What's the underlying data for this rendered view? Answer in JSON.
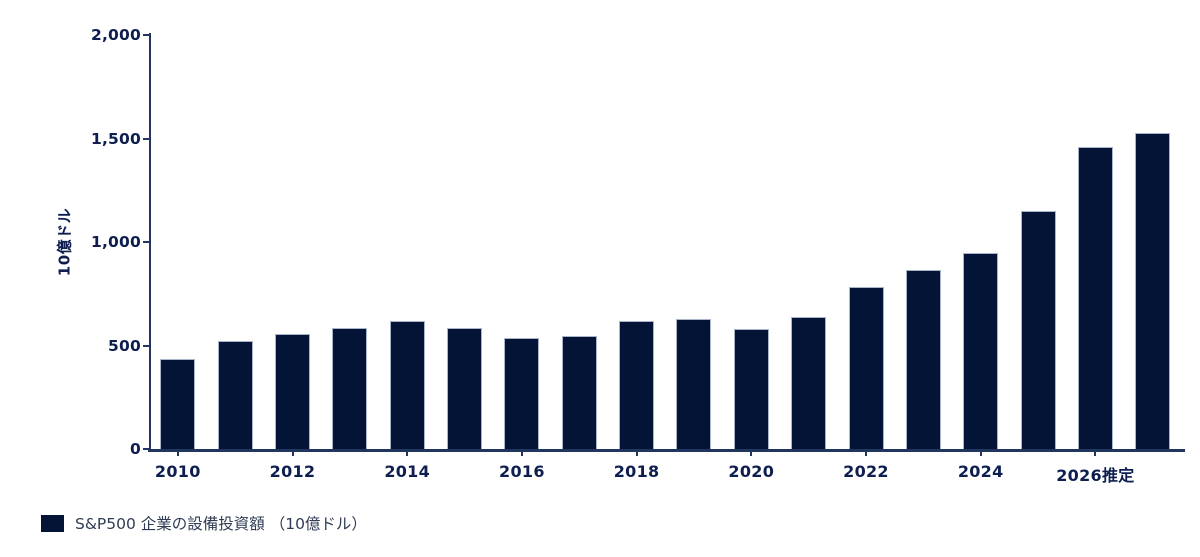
{
  "colors": {
    "bar_fill": "#041437",
    "bar_border": "#aab4c9",
    "axis_line": "#22355f",
    "axis_label": "#0d1e4f",
    "legend_text": "#303c54",
    "background": "#ffffff"
  },
  "chart_data": {
    "type": "bar",
    "title": "",
    "xlabel": "",
    "ylabel": "10億ドル",
    "unit": "10億ドル",
    "ylim": [
      0,
      2000
    ],
    "grid": false,
    "legend_position": "bottom-left",
    "series_label": "S&P500 企業の設備投資額 （10億ドル）",
    "x": [
      2010,
      2011,
      2012,
      2013,
      2014,
      2015,
      2016,
      2017,
      2018,
      2019,
      2020,
      2021,
      2022,
      2023,
      2024,
      2025,
      2026,
      2027
    ],
    "values": [
      435,
      520,
      555,
      585,
      620,
      585,
      535,
      545,
      620,
      630,
      580,
      640,
      785,
      865,
      945,
      1150,
      1460,
      1525
    ],
    "y_ticks": [
      0,
      500,
      1000,
      1500,
      2000
    ],
    "y_tick_labels": [
      "0",
      "500",
      "1,000",
      "1,500",
      "2,000"
    ],
    "x_tick_positions": [
      2010,
      2012,
      2014,
      2016,
      2018,
      2020,
      2022,
      2024,
      2026
    ],
    "x_tick_labels": [
      "2010",
      "2012",
      "2014",
      "2016",
      "2018",
      "2020",
      "2022",
      "2024",
      "2026推定"
    ]
  }
}
